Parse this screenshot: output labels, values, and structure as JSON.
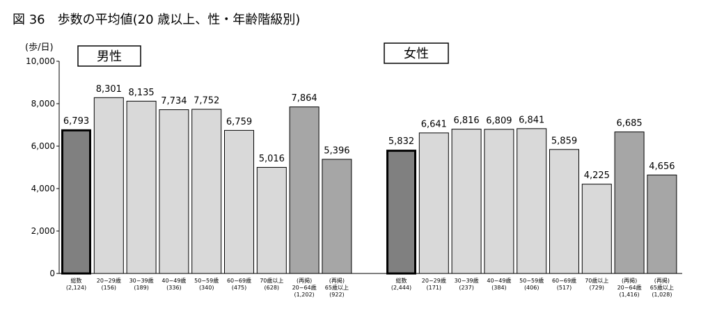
{
  "figure_title": "図 36　歩数の平均値(20 歳以上、性・年齢階級別)",
  "chart_data": {
    "type": "bar",
    "ylabel": "(歩/日)",
    "ylim": [
      0,
      10000
    ],
    "yticks": [
      "0",
      "2,000",
      "4,000",
      "6,000",
      "8,000",
      "10,000"
    ],
    "ytick_values": [
      0,
      2000,
      4000,
      6000,
      8000,
      10000
    ],
    "grid": false,
    "panels": [
      {
        "title": "男性",
        "categories": [
          {
            "label": "総数",
            "n": "(2,124)",
            "value": 6793,
            "value_label": "6,793",
            "style": "total"
          },
          {
            "label": "20−29歳",
            "n": "(156)",
            "value": 8301,
            "value_label": "8,301",
            "style": "age"
          },
          {
            "label": "30−39歳",
            "n": "(189)",
            "value": 8135,
            "value_label": "8,135",
            "style": "age"
          },
          {
            "label": "40−49歳",
            "n": "(336)",
            "value": 7734,
            "value_label": "7,734",
            "style": "age"
          },
          {
            "label": "50−59歳",
            "n": "(340)",
            "value": 7752,
            "value_label": "7,752",
            "style": "age"
          },
          {
            "label": "60−69歳",
            "n": "(475)",
            "value": 6759,
            "value_label": "6,759",
            "style": "age"
          },
          {
            "label": "70歳以上",
            "n": "(628)",
            "value": 5016,
            "value_label": "5,016",
            "style": "age"
          },
          {
            "label": "(再掲)",
            "label2": "20−64歳",
            "n": "(1,202)",
            "value": 7864,
            "value_label": "7,864",
            "style": "repost"
          },
          {
            "label": "(再掲)",
            "label2": "65歳以上",
            "n": "(922)",
            "value": 5396,
            "value_label": "5,396",
            "style": "repost"
          }
        ]
      },
      {
        "title": "女性",
        "categories": [
          {
            "label": "総数",
            "n": "(2,444)",
            "value": 5832,
            "value_label": "5,832",
            "style": "total"
          },
          {
            "label": "20−29歳",
            "n": "(171)",
            "value": 6641,
            "value_label": "6,641",
            "style": "age"
          },
          {
            "label": "30−39歳",
            "n": "(237)",
            "value": 6816,
            "value_label": "6,816",
            "style": "age"
          },
          {
            "label": "40−49歳",
            "n": "(384)",
            "value": 6809,
            "value_label": "6,809",
            "style": "age"
          },
          {
            "label": "50−59歳",
            "n": "(406)",
            "value": 6841,
            "value_label": "6,841",
            "style": "age"
          },
          {
            "label": "60−69歳",
            "n": "(517)",
            "value": 5859,
            "value_label": "5,859",
            "style": "age"
          },
          {
            "label": "70歳以上",
            "n": "(729)",
            "value": 4225,
            "value_label": "4,225",
            "style": "age"
          },
          {
            "label": "(再掲)",
            "label2": "20−64歳",
            "n": "(1,416)",
            "value": 6685,
            "value_label": "6,685",
            "style": "repost"
          },
          {
            "label": "(再掲)",
            "label2": "65歳以上",
            "n": "(1,028)",
            "value": 4656,
            "value_label": "4,656",
            "style": "repost"
          }
        ]
      }
    ],
    "colors": {
      "total": "#808080",
      "age": "#d9d9d9",
      "repost": "#a6a6a6",
      "outline": "#000000"
    }
  }
}
